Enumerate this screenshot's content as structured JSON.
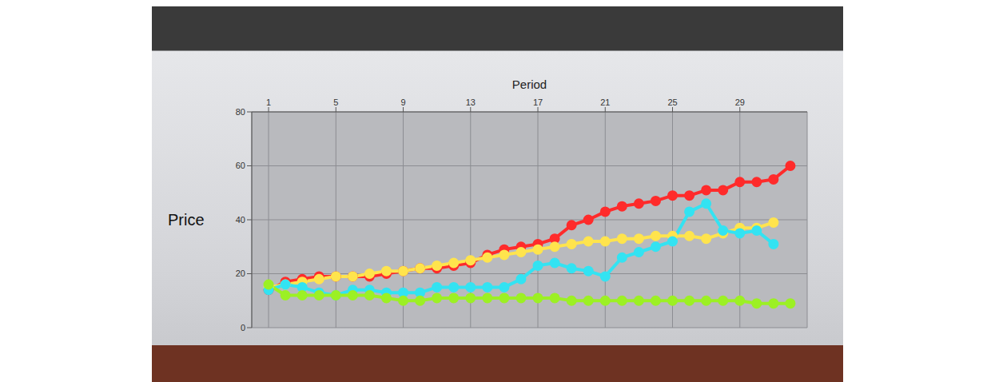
{
  "chart_data": {
    "type": "line",
    "x_label": "Period",
    "y_label": "Price",
    "x": [
      1,
      2,
      3,
      4,
      5,
      6,
      7,
      8,
      9,
      10,
      11,
      12,
      13,
      14,
      15,
      16,
      17,
      18,
      19,
      20,
      21,
      22,
      23,
      24,
      25,
      26,
      27,
      28,
      29,
      30,
      31,
      32
    ],
    "series": [
      {
        "color": "#ff2b2b",
        "values": [
          14,
          17,
          18,
          19,
          19,
          19,
          19,
          20,
          21,
          22,
          22,
          23,
          24,
          27,
          29,
          30,
          31,
          33,
          38,
          40,
          43,
          45,
          46,
          47,
          49,
          49,
          51,
          51,
          54,
          54,
          55,
          60
        ]
      },
      {
        "color": "#ffe44d",
        "values": [
          15,
          16,
          17,
          18,
          19,
          19,
          20,
          21,
          21,
          22,
          23,
          24,
          25,
          26,
          27,
          28,
          29,
          30,
          31,
          32,
          32,
          33,
          33,
          34,
          34,
          34,
          33,
          35,
          37,
          37,
          39,
          null
        ]
      },
      {
        "color": "#33e3f2",
        "values": [
          14,
          16,
          15,
          13,
          12,
          14,
          14,
          13,
          13,
          13,
          15,
          15,
          15,
          15,
          15,
          18,
          23,
          24,
          22,
          21,
          19,
          26,
          28,
          30,
          32,
          43,
          46,
          36,
          35,
          36,
          31,
          null
        ]
      },
      {
        "color": "#9cf024",
        "values": [
          16,
          12,
          12,
          12,
          12,
          12,
          12,
          11,
          10,
          10,
          11,
          11,
          11,
          11,
          11,
          11,
          11,
          11,
          10,
          10,
          10,
          10,
          10,
          10,
          10,
          10,
          10,
          10,
          10,
          9,
          9,
          9
        ]
      }
    ],
    "xlim": [
      0,
      33
    ],
    "xticks": [
      1,
      5,
      9,
      13,
      17,
      21,
      25,
      29
    ],
    "ylim": [
      0,
      80
    ],
    "yticks": [
      0,
      20,
      40,
      60,
      80
    ],
    "grid": true,
    "marker": "circle"
  }
}
